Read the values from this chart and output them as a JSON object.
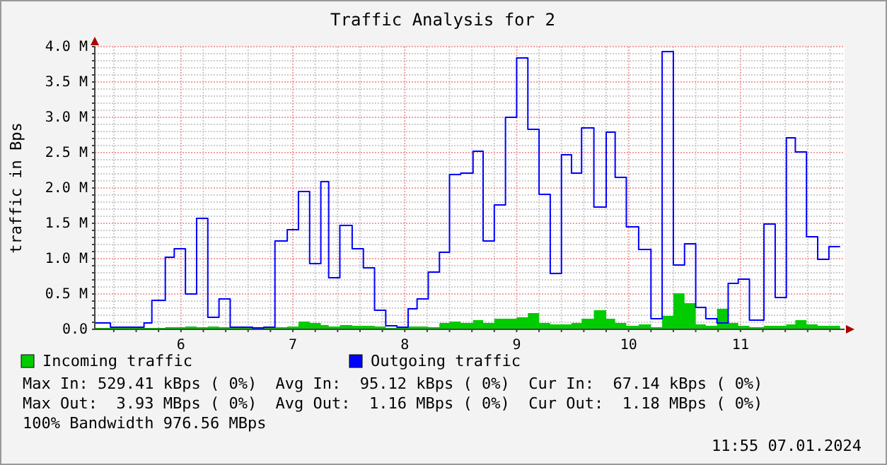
{
  "chart_data": {
    "type": "step",
    "title": "Traffic Analysis for 2",
    "ylabel": "traffic in Bps",
    "x": [
      5.23,
      5.37,
      5.47,
      5.57,
      5.67,
      5.74,
      5.86,
      5.94,
      6.04,
      6.14,
      6.24,
      6.34,
      6.44,
      6.54,
      6.64,
      6.74,
      6.84,
      6.95,
      7.05,
      7.15,
      7.25,
      7.32,
      7.42,
      7.53,
      7.63,
      7.73,
      7.83,
      7.93,
      8.03,
      8.11,
      8.21,
      8.31,
      8.4,
      8.5,
      8.61,
      8.7,
      8.8,
      8.9,
      9.0,
      9.1,
      9.2,
      9.3,
      9.4,
      9.49,
      9.58,
      9.69,
      9.8,
      9.88,
      9.98,
      10.09,
      10.2,
      10.3,
      10.4,
      10.5,
      10.6,
      10.69,
      10.79,
      10.89,
      10.98,
      11.08,
      11.21,
      11.31,
      11.41,
      11.49,
      11.59,
      11.69,
      11.79,
      11.89
    ],
    "series": [
      {
        "name": "Incoming traffic",
        "type": "area",
        "color": "#00cc00",
        "values": [
          0.02,
          0.02,
          0.02,
          0.02,
          0.02,
          0.02,
          0.03,
          0.03,
          0.04,
          0.03,
          0.04,
          0.03,
          0.04,
          0.02,
          0.02,
          0.02,
          0.03,
          0.04,
          0.11,
          0.09,
          0.06,
          0.04,
          0.06,
          0.05,
          0.05,
          0.04,
          0.02,
          0.03,
          0.04,
          0.04,
          0.03,
          0.09,
          0.11,
          0.09,
          0.13,
          0.09,
          0.15,
          0.15,
          0.17,
          0.23,
          0.09,
          0.07,
          0.07,
          0.09,
          0.15,
          0.27,
          0.15,
          0.09,
          0.05,
          0.07,
          0.03,
          0.19,
          0.51,
          0.37,
          0.07,
          0.05,
          0.29,
          0.09,
          0.05,
          0.03,
          0.05,
          0.05,
          0.07,
          0.13,
          0.07,
          0.05,
          0.05,
          0.05
        ]
      },
      {
        "name": "Outgoing traffic",
        "color": "#0000ff",
        "values": [
          0.09,
          0.03,
          0.03,
          0.03,
          0.09,
          0.41,
          1.02,
          1.14,
          0.5,
          1.57,
          0.17,
          0.43,
          0.03,
          0.03,
          0.02,
          0.03,
          1.25,
          1.41,
          1.95,
          0.93,
          2.09,
          0.73,
          1.47,
          1.14,
          0.87,
          0.27,
          0.05,
          0.03,
          0.29,
          0.43,
          0.81,
          1.09,
          2.19,
          2.21,
          2.52,
          1.25,
          1.76,
          3.0,
          3.84,
          2.83,
          1.91,
          0.79,
          2.47,
          2.21,
          2.85,
          1.73,
          2.79,
          2.15,
          1.45,
          1.13,
          0.15,
          3.93,
          0.91,
          1.21,
          0.31,
          0.15,
          0.09,
          0.65,
          0.71,
          0.13,
          1.49,
          0.45,
          2.71,
          2.51,
          1.31,
          0.99,
          1.17,
          1.17
        ]
      }
    ],
    "xlim": [
      5.23,
      11.93
    ],
    "xticks": [
      {
        "value": 5.4,
        "label": null
      },
      {
        "value": 5.6,
        "label": null
      },
      {
        "value": 5.8,
        "label": null
      },
      6,
      {
        "value": 6.2,
        "label": null
      },
      {
        "value": 6.4,
        "label": null
      },
      {
        "value": 6.6,
        "label": null
      },
      {
        "value": 6.8,
        "label": null
      },
      7,
      {
        "value": 7.2,
        "label": null
      },
      {
        "value": 7.4,
        "label": null
      },
      {
        "value": 7.6,
        "label": null
      },
      {
        "value": 7.8,
        "label": null
      },
      8,
      {
        "value": 8.2,
        "label": null
      },
      {
        "value": 8.4,
        "label": null
      },
      {
        "value": 8.6,
        "label": null
      },
      {
        "value": 8.8,
        "label": null
      },
      9,
      {
        "value": 9.2,
        "label": null
      },
      {
        "value": 9.4,
        "label": null
      },
      {
        "value": 9.6,
        "label": null
      },
      {
        "value": 9.8,
        "label": null
      },
      10,
      {
        "value": 10.2,
        "label": null
      },
      {
        "value": 10.4,
        "label": null
      },
      {
        "value": 10.6,
        "label": null
      },
      {
        "value": 10.8,
        "label": null
      },
      11,
      {
        "value": 11.2,
        "label": null
      },
      {
        "value": 11.4,
        "label": null
      },
      {
        "value": 11.6,
        "label": null
      },
      {
        "value": 11.8,
        "label": null
      }
    ],
    "ylim": [
      0,
      4
    ],
    "yticks": [
      {
        "value": 0,
        "label": "0.0"
      },
      {
        "value": 0.1,
        "label": null
      },
      {
        "value": 0.2,
        "label": null
      },
      {
        "value": 0.3,
        "label": null
      },
      {
        "value": 0.4,
        "label": null
      },
      {
        "value": 0.5,
        "label": "0.5 M"
      },
      {
        "value": 0.6,
        "label": null
      },
      {
        "value": 0.7,
        "label": null
      },
      {
        "value": 0.8,
        "label": null
      },
      {
        "value": 0.9,
        "label": null
      },
      {
        "value": 1,
        "label": "1.0 M"
      },
      {
        "value": 1.1,
        "label": null
      },
      {
        "value": 1.2,
        "label": null
      },
      {
        "value": 1.3,
        "label": null
      },
      {
        "value": 1.4,
        "label": null
      },
      {
        "value": 1.5,
        "label": "1.5 M"
      },
      {
        "value": 1.6,
        "label": null
      },
      {
        "value": 1.7,
        "label": null
      },
      {
        "value": 1.8,
        "label": null
      },
      {
        "value": 1.9,
        "label": null
      },
      {
        "value": 2,
        "label": "2.0 M"
      },
      {
        "value": 2.1,
        "label": null
      },
      {
        "value": 2.2,
        "label": null
      },
      {
        "value": 2.3,
        "label": null
      },
      {
        "value": 2.4,
        "label": null
      },
      {
        "value": 2.5,
        "label": "2.5 M"
      },
      {
        "value": 2.6,
        "label": null
      },
      {
        "value": 2.7,
        "label": null
      },
      {
        "value": 2.8,
        "label": null
      },
      {
        "value": 2.9,
        "label": null
      },
      {
        "value": 3,
        "label": "3.0 M"
      },
      {
        "value": 3.1,
        "label": null
      },
      {
        "value": 3.2,
        "label": null
      },
      {
        "value": 3.3,
        "label": null
      },
      {
        "value": 3.4,
        "label": null
      },
      {
        "value": 3.5,
        "label": "3.5 M"
      },
      {
        "value": 3.6,
        "label": null
      },
      {
        "value": 3.7,
        "label": null
      },
      {
        "value": 3.8,
        "label": null
      },
      {
        "value": 3.9,
        "label": null
      },
      {
        "value": 4,
        "label": "4.0 M"
      }
    ],
    "grid": true,
    "legend": "bottom",
    "annotations": [
      "Max In: 529.41 kBps ( 0%)  Avg In:  95.12 kBps ( 0%)  Cur In:  67.14 kBps ( 0%)",
      "Max Out:  3.93 MBps ( 0%)  Avg Out:  1.16 MBps ( 0%)  Cur Out:  1.18 MBps ( 0%)",
      "100% Bandwidth 976.56 MBps",
      "11:55 07.01.2024"
    ]
  }
}
